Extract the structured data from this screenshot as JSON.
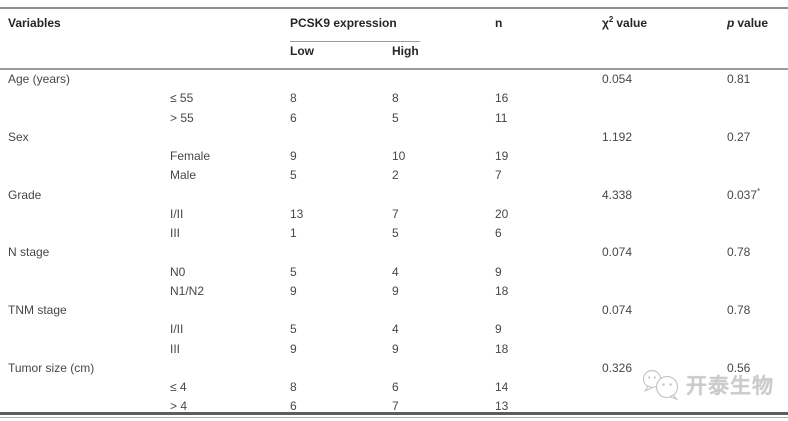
{
  "table": {
    "header": {
      "variables": "Variables",
      "pcsk9": "PCSK9 expression",
      "low": "Low",
      "high": "High",
      "n": "n",
      "chi_base": "χ",
      "chi_sup": "2",
      "chi_rest": "value",
      "p_base": "p",
      "p_rest": "value"
    },
    "rows": [
      {
        "type": "group",
        "label": "Age (years)",
        "chi": "0.054",
        "p": "0.81"
      },
      {
        "type": "sub",
        "label": "≤ 55",
        "low": "8",
        "high": "8",
        "n": "16"
      },
      {
        "type": "sub",
        "label": "> 55",
        "low": "6",
        "high": "5",
        "n": "11"
      },
      {
        "type": "group",
        "label": "Sex",
        "chi": "1.192",
        "p": "0.27"
      },
      {
        "type": "sub",
        "label": "Female",
        "low": "9",
        "high": "10",
        "n": "19"
      },
      {
        "type": "sub",
        "label": "Male",
        "low": "5",
        "high": "2",
        "n": "7"
      },
      {
        "type": "group",
        "label": "Grade",
        "chi": "4.338",
        "p": "0.037",
        "p_sup": "*"
      },
      {
        "type": "sub",
        "label": "I/II",
        "low": "13",
        "high": "7",
        "n": "20"
      },
      {
        "type": "sub",
        "label": "III",
        "low": "1",
        "high": "5",
        "n": "6"
      },
      {
        "type": "group",
        "label": "N stage",
        "chi": "0.074",
        "p": "0.78"
      },
      {
        "type": "sub",
        "label": "N0",
        "low": "5",
        "high": "4",
        "n": "9"
      },
      {
        "type": "sub",
        "label": "N1/N2",
        "low": "9",
        "high": "9",
        "n": "18"
      },
      {
        "type": "group",
        "label": "TNM stage",
        "chi": "0.074",
        "p": "0.78"
      },
      {
        "type": "sub",
        "label": "I/II",
        "low": "5",
        "high": "4",
        "n": "9"
      },
      {
        "type": "sub",
        "label": "III",
        "low": "9",
        "high": "9",
        "n": "18"
      },
      {
        "type": "group",
        "label": "Tumor size (cm)",
        "chi": "0.326",
        "p": "0.56"
      },
      {
        "type": "sub",
        "label": "≤ 4",
        "low": "8",
        "high": "6",
        "n": "14"
      },
      {
        "type": "sub",
        "label": "> 4",
        "low": "6",
        "high": "7",
        "n": "13"
      }
    ]
  },
  "watermark": {
    "text": "开泰生物"
  }
}
